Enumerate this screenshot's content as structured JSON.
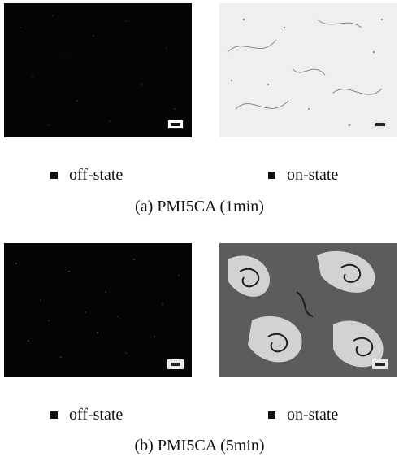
{
  "panels": [
    {
      "legend_left": "off-state",
      "legend_right": "on-state",
      "caption": "(a) PMI5CA (1min)"
    },
    {
      "legend_left": "off-state",
      "legend_right": "on-state",
      "caption": "(b) PMI5CA (5min)"
    }
  ]
}
